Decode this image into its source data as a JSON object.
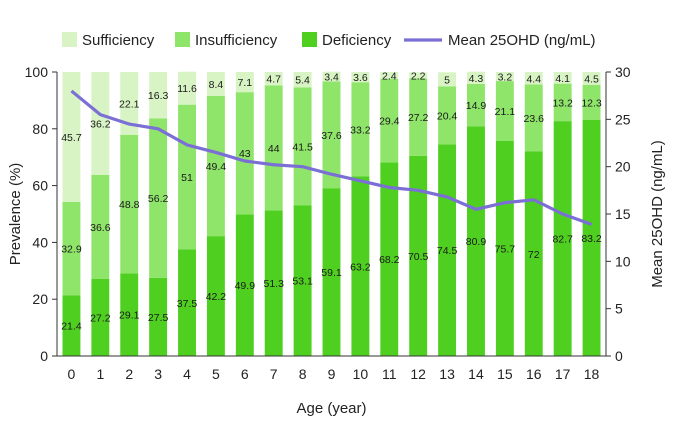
{
  "chart_data": {
    "type": "bar",
    "stacked": true,
    "categories": [
      "0",
      "1",
      "2",
      "3",
      "4",
      "5",
      "6",
      "7",
      "8",
      "9",
      "10",
      "11",
      "12",
      "13",
      "14",
      "15",
      "16",
      "17",
      "18"
    ],
    "series": [
      {
        "name": "Deficiency",
        "color": "#4fd020",
        "values": [
          21.4,
          27.2,
          29.1,
          27.5,
          37.5,
          42.2,
          49.9,
          51.3,
          53.1,
          59.1,
          63.2,
          68.2,
          70.5,
          74.5,
          80.9,
          75.7,
          72,
          82.7,
          83.2
        ]
      },
      {
        "name": "Insufficiency",
        "color": "#8fe46a",
        "values": [
          32.9,
          36.6,
          48.8,
          56.2,
          51,
          49.4,
          43,
          44,
          41.5,
          37.6,
          33.2,
          29.4,
          27.2,
          20.4,
          14.9,
          21.1,
          23.6,
          13.2,
          12.3
        ]
      },
      {
        "name": "Sufficiency",
        "color": "#d8f4c4",
        "values": [
          45.7,
          36.2,
          22.1,
          16.3,
          11.6,
          8.4,
          7.1,
          4.7,
          5.4,
          3.4,
          3.6,
          2.4,
          2.2,
          5,
          4.3,
          3.2,
          4.4,
          4.1,
          4.5
        ]
      }
    ],
    "line_series": {
      "name": "Mean 25OHD (ng/mL)",
      "color": "#7b6fd6",
      "axis": "right",
      "values": [
        28.0,
        25.5,
        24.5,
        24.0,
        22.3,
        21.5,
        20.6,
        20.2,
        20.0,
        19.2,
        18.5,
        17.8,
        17.5,
        16.8,
        15.5,
        16.2,
        16.5,
        15.0,
        13.9
      ]
    },
    "xlabel": "Age (year)",
    "ylabel": "Prevalence (%)",
    "y2label": "Mean 25OHD (ng/mL)",
    "ylim": [
      0,
      100
    ],
    "y2lim": [
      0,
      30
    ],
    "yticks": [
      0,
      20,
      40,
      60,
      80,
      100
    ],
    "y2ticks": [
      0,
      5,
      10,
      15,
      20,
      25,
      30
    ],
    "legend_position": "top",
    "legend": [
      "Sufficiency",
      "Insufficiency",
      "Deficiency",
      "Mean 25OHD (ng/mL)"
    ],
    "grid": false
  }
}
